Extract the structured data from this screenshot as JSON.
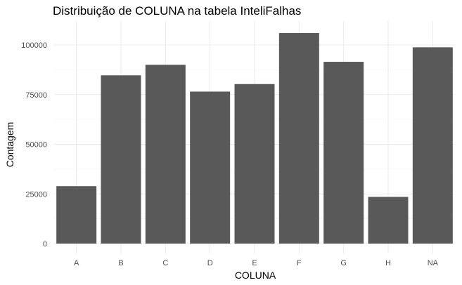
{
  "chart_data": {
    "type": "bar",
    "title": "Distribuição de COLUNA na tabela InteliFalhas",
    "xlabel": "COLUNA",
    "ylabel": "Contagem",
    "categories": [
      "A",
      "B",
      "C",
      "D",
      "E",
      "F",
      "G",
      "H",
      "NA"
    ],
    "values": [
      28900,
      84700,
      90000,
      76500,
      80300,
      106000,
      91500,
      23500,
      98800
    ],
    "ylim": [
      0,
      110000
    ],
    "yticks": [
      0,
      25000,
      50000,
      75000,
      100000
    ],
    "ytick_labels": [
      "0",
      "25000",
      "50000",
      "75000",
      "100000"
    ],
    "grid": true,
    "legend": "none",
    "bar_color": "#595959"
  }
}
